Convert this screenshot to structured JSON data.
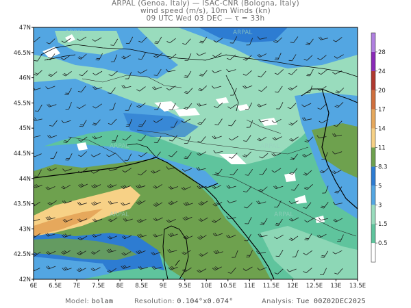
{
  "header": {
    "line1": "ARPAL (Genoa, Italy)  —  ISAC-CNR (Bologna, Italy)",
    "line2": "wind speed (m/s), 10m Winds (kn)",
    "line3": "09 UTC Wed 03 DEC  —  τ = 33h"
  },
  "axes": {
    "lat_labels": [
      "47N",
      "46.5N",
      "46N",
      "45.5N",
      "45N",
      "44.5N",
      "44N",
      "43.5N",
      "43N",
      "42.5N",
      "42N"
    ],
    "lon_labels": [
      "6E",
      "6.5E",
      "7E",
      "7.5E",
      "8E",
      "8.5E",
      "9E",
      "9.5E",
      "10E",
      "10.5E",
      "11E",
      "11.5E",
      "12E",
      "12.5E",
      "13E",
      "13.5E"
    ]
  },
  "colorbar": {
    "levels": [
      "0.5",
      "1.5",
      "3",
      "5",
      "8.3",
      "11",
      "14",
      "17",
      "20",
      "24",
      "28"
    ],
    "colors": [
      "#ffffff",
      "#5fc49d",
      "#99dcbd",
      "#53a6e2",
      "#2d7cd2",
      "#6ea14e",
      "#f7d186",
      "#e6a85c",
      "#d06f3d",
      "#b0392f",
      "#8a2ab8",
      "#b080e0"
    ]
  },
  "watermark": "ARPAL",
  "footer": {
    "model_label": "Model:",
    "model_value": "bolam",
    "resolution_label": "Resolution:",
    "resolution_value": "0.104°x0.074°",
    "analysis_label": "Analysis:",
    "analysis_value": "Tue 00Z02DEC2025"
  }
}
